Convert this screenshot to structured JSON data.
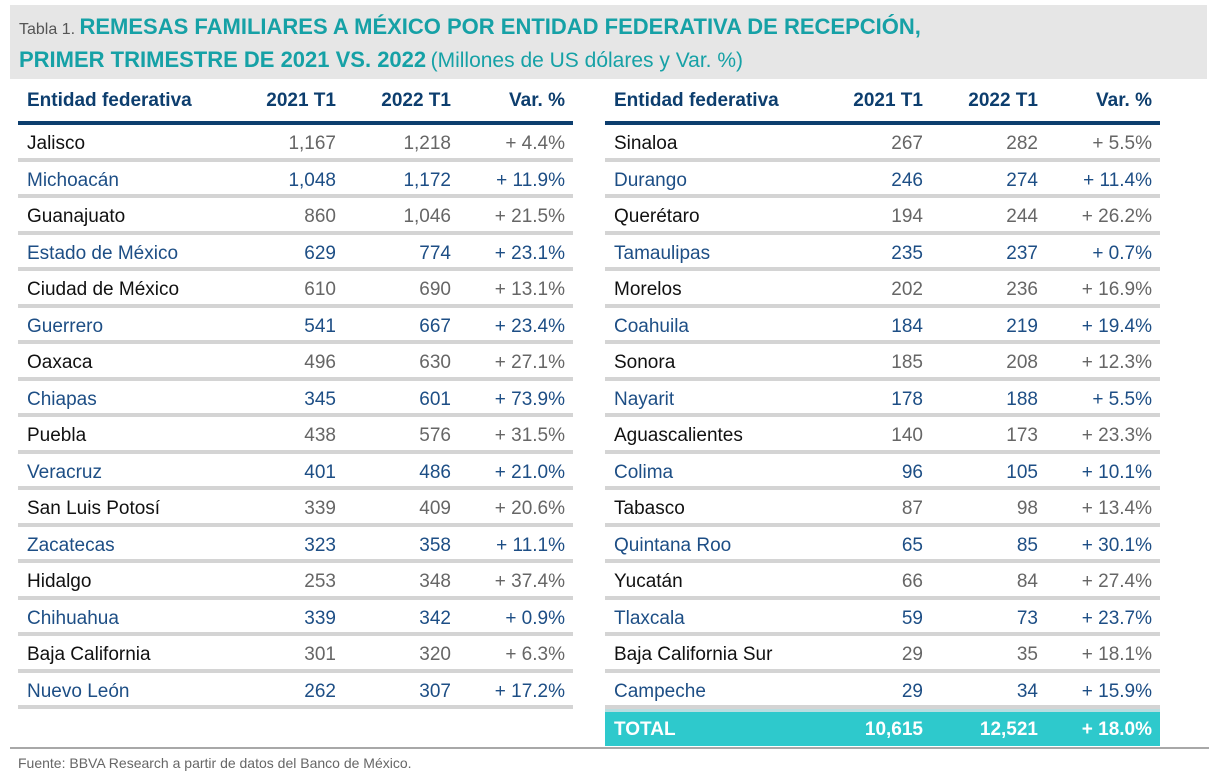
{
  "title": {
    "label": "Tabla 1.",
    "line1": "REMESAS FAMILIARES A MÉXICO POR ENTIDAD FEDERATIVA DE RECEPCIÓN,",
    "line2": "PRIMER TRIMESTRE DE 2021 VS. 2022",
    "units": "(Millones de US dólares y Var. %)"
  },
  "columns": [
    "Entidad federativa",
    "2021 T1",
    "2022 T1",
    "Var. %"
  ],
  "left_rows": [
    {
      "entity": "Jalisco",
      "y2021": "1,167",
      "y2022": "1,218",
      "var": "+ 4.4%"
    },
    {
      "entity": "Michoacán",
      "y2021": "1,048",
      "y2022": "1,172",
      "var": "+ 11.9%"
    },
    {
      "entity": "Guanajuato",
      "y2021": "860",
      "y2022": "1,046",
      "var": "+ 21.5%"
    },
    {
      "entity": "Estado de México",
      "y2021": "629",
      "y2022": "774",
      "var": "+ 23.1%"
    },
    {
      "entity": "Ciudad de México",
      "y2021": "610",
      "y2022": "690",
      "var": "+ 13.1%"
    },
    {
      "entity": "Guerrero",
      "y2021": "541",
      "y2022": "667",
      "var": "+ 23.4%"
    },
    {
      "entity": "Oaxaca",
      "y2021": "496",
      "y2022": "630",
      "var": "+ 27.1%"
    },
    {
      "entity": "Chiapas",
      "y2021": "345",
      "y2022": "601",
      "var": "+ 73.9%"
    },
    {
      "entity": "Puebla",
      "y2021": "438",
      "y2022": "576",
      "var": "+ 31.5%"
    },
    {
      "entity": "Veracruz",
      "y2021": "401",
      "y2022": "486",
      "var": "+ 21.0%"
    },
    {
      "entity": "San Luis Potosí",
      "y2021": "339",
      "y2022": "409",
      "var": "+ 20.6%"
    },
    {
      "entity": "Zacatecas",
      "y2021": "323",
      "y2022": "358",
      "var": "+ 11.1%"
    },
    {
      "entity": "Hidalgo",
      "y2021": "253",
      "y2022": "348",
      "var": "+ 37.4%"
    },
    {
      "entity": "Chihuahua",
      "y2021": "339",
      "y2022": "342",
      "var": "+ 0.9%"
    },
    {
      "entity": "Baja California",
      "y2021": "301",
      "y2022": "320",
      "var": "+ 6.3%"
    },
    {
      "entity": "Nuevo León",
      "y2021": "262",
      "y2022": "307",
      "var": "+ 17.2%"
    }
  ],
  "right_rows": [
    {
      "entity": "Sinaloa",
      "y2021": "267",
      "y2022": "282",
      "var": "+ 5.5%"
    },
    {
      "entity": "Durango",
      "y2021": "246",
      "y2022": "274",
      "var": "+ 11.4%"
    },
    {
      "entity": "Querétaro",
      "y2021": "194",
      "y2022": "244",
      "var": "+ 26.2%"
    },
    {
      "entity": "Tamaulipas",
      "y2021": "235",
      "y2022": "237",
      "var": "+ 0.7%"
    },
    {
      "entity": "Morelos",
      "y2021": "202",
      "y2022": "236",
      "var": "+ 16.9%"
    },
    {
      "entity": "Coahuila",
      "y2021": "184",
      "y2022": "219",
      "var": "+ 19.4%"
    },
    {
      "entity": "Sonora",
      "y2021": "185",
      "y2022": "208",
      "var": "+ 12.3%"
    },
    {
      "entity": "Nayarit",
      "y2021": "178",
      "y2022": "188",
      "var": "+ 5.5%"
    },
    {
      "entity": "Aguascalientes",
      "y2021": "140",
      "y2022": "173",
      "var": "+ 23.3%"
    },
    {
      "entity": "Colima",
      "y2021": "96",
      "y2022": "105",
      "var": "+ 10.1%"
    },
    {
      "entity": "Tabasco",
      "y2021": "87",
      "y2022": "98",
      "var": "+ 13.4%"
    },
    {
      "entity": "Quintana Roo",
      "y2021": "65",
      "y2022": "85",
      "var": "+ 30.1%"
    },
    {
      "entity": "Yucatán",
      "y2021": "66",
      "y2022": "84",
      "var": "+ 27.4%"
    },
    {
      "entity": "Tlaxcala",
      "y2021": "59",
      "y2022": "73",
      "var": "+ 23.7%"
    },
    {
      "entity": "Baja California Sur",
      "y2021": "29",
      "y2022": "35",
      "var": "+ 18.1%"
    },
    {
      "entity": "Campeche",
      "y2021": "29",
      "y2022": "34",
      "var": "+ 15.9%"
    }
  ],
  "total": {
    "entity": "TOTAL",
    "y2021": "10,615",
    "y2022": "12,521",
    "var": "+ 18.0%"
  },
  "source": "Fuente: BBVA Research a partir de datos del Banco de México.",
  "colors": {
    "title_teal": "#16a1a6",
    "header_navy": "#0d3e6e",
    "row_blue": "#1d4e85",
    "total_teal": "#2ec9cc"
  }
}
